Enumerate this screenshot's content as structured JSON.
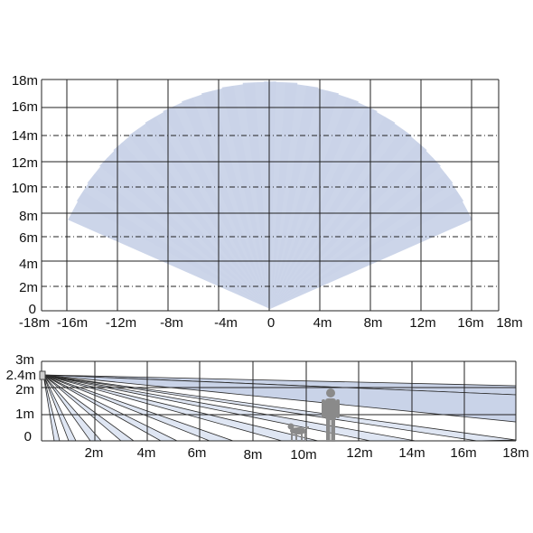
{
  "colors": {
    "beam": "#c9d3e8",
    "beam_light": "#dfe6f3",
    "grid": "#222222",
    "text": "#111111",
    "person": "#8a8a8a",
    "dog": "#8a8a8a"
  },
  "top_view": {
    "y_ticks": [
      "18m",
      "16m",
      "14m",
      "12m",
      "10m",
      "8m",
      "6m",
      "4m",
      "2m",
      "0"
    ],
    "x_ticks": [
      "-18m",
      "-16m",
      "-12m",
      "-8m",
      "-4m",
      "0",
      "4m",
      "8m",
      "12m",
      "16m",
      "18m"
    ],
    "beam_count": 24
  },
  "side_view": {
    "y_ticks": [
      "3m",
      "2.4m",
      "2m",
      "1m",
      "0"
    ],
    "x_ticks": [
      "2m",
      "4m",
      "6m",
      "8m",
      "10m",
      "12m",
      "14m",
      "16m",
      "18m"
    ],
    "figures": [
      "person-icon",
      "dog-icon"
    ]
  }
}
